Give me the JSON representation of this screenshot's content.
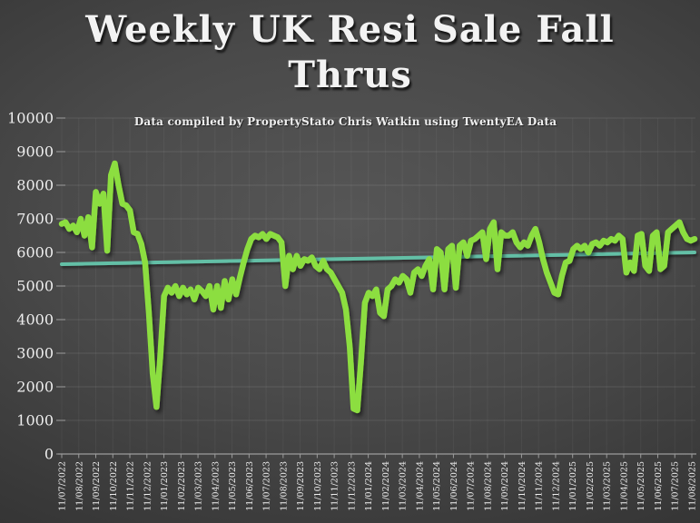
{
  "title": {
    "line1": "Weekly UK Resi Sale Fall",
    "line2": "Thrus"
  },
  "subtitle": "Data compiled by PropertyStato Chris Watkin using TwentyEA Data",
  "colors": {
    "series_green": "#8CDE3F",
    "trend_teal": "#63BFA6",
    "axis": "#9c9c9c",
    "label_text": "#eeeeee",
    "gridline": "rgba(255,255,255,0.10)",
    "gridline_vertical": "rgba(255,255,255,0.05)"
  },
  "chart_data": {
    "type": "line",
    "title": "Weekly UK Resi Sale Fall Thrus",
    "xlabel": "",
    "ylabel": "",
    "ylim": [
      0,
      10000
    ],
    "grid": true,
    "legend": "none",
    "y_ticks": [
      0,
      1000,
      2000,
      3000,
      4000,
      5000,
      6000,
      7000,
      8000,
      9000,
      10000
    ],
    "x_tick_labels": [
      "11/07/2022",
      "11/08/2022",
      "11/09/2022",
      "11/10/2022",
      "11/11/2022",
      "11/12/2022",
      "11/01/2023",
      "11/02/2023",
      "11/03/2023",
      "11/04/2023",
      "11/05/2023",
      "11/06/2023",
      "11/07/2023",
      "11/08/2023",
      "11/09/2023",
      "11/10/2023",
      "11/11/2023",
      "11/12/2023",
      "11/01/2024",
      "11/02/2024",
      "11/03/2024",
      "11/04/2024",
      "11/05/2024",
      "11/06/2024",
      "11/07/2024",
      "11/08/2024",
      "11/09/2024",
      "11/10/2024",
      "11/11/2024",
      "11/12/2024",
      "11/01/2025",
      "11/02/2025",
      "11/03/2025",
      "11/04/2025",
      "11/05/2025",
      "11/06/2025",
      "11/07/2025",
      "11/08/2025"
    ],
    "series": [
      {
        "name": "weekly_sale_fall_thrus",
        "color": "#8CDE3F",
        "values": [
          6850,
          6900,
          6700,
          6800,
          6600,
          7000,
          6500,
          7050,
          6150,
          7800,
          7450,
          7750,
          6050,
          8300,
          8650,
          8000,
          7450,
          7400,
          7250,
          6600,
          6550,
          6250,
          5700,
          4200,
          2400,
          1400,
          2900,
          4700,
          4950,
          4800,
          5000,
          4700,
          4950,
          4750,
          4900,
          4600,
          4950,
          4850,
          4700,
          5000,
          4300,
          5000,
          4350,
          5150,
          4600,
          5200,
          4750,
          5250,
          5700,
          6100,
          6400,
          6500,
          6450,
          6550,
          6400,
          6550,
          6500,
          6450,
          6300,
          5000,
          5900,
          5500,
          5900,
          5600,
          5800,
          5750,
          5850,
          5600,
          5500,
          5750,
          5500,
          5400,
          5200,
          5000,
          4800,
          4300,
          3200,
          1350,
          1300,
          2800,
          4500,
          4800,
          4700,
          4900,
          4200,
          4100,
          4900,
          5000,
          5200,
          5100,
          5300,
          5200,
          4800,
          5400,
          5500,
          5300,
          5600,
          5800,
          4900,
          6100,
          6000,
          4900,
          6100,
          6200,
          4950,
          6200,
          6300,
          5900,
          6350,
          6400,
          6500,
          6600,
          5800,
          6700,
          6900,
          5500,
          6600,
          6500,
          6500,
          6600,
          6300,
          6150,
          6300,
          6200,
          6500,
          6700,
          6300,
          5800,
          5400,
          5100,
          4800,
          4750,
          5300,
          5700,
          5750,
          6100,
          6200,
          6100,
          6200,
          6000,
          6250,
          6300,
          6200,
          6350,
          6300,
          6400,
          6350,
          6500,
          6400,
          5400,
          5700,
          5450,
          6500,
          6550,
          5600,
          5450,
          6500,
          6600,
          5500,
          5600,
          6600,
          6700,
          6800,
          6900,
          6600,
          6400,
          6350,
          6400
        ]
      },
      {
        "name": "linear_trend",
        "color": "#63BFA6",
        "values": [
          5650,
          6000
        ]
      }
    ]
  }
}
